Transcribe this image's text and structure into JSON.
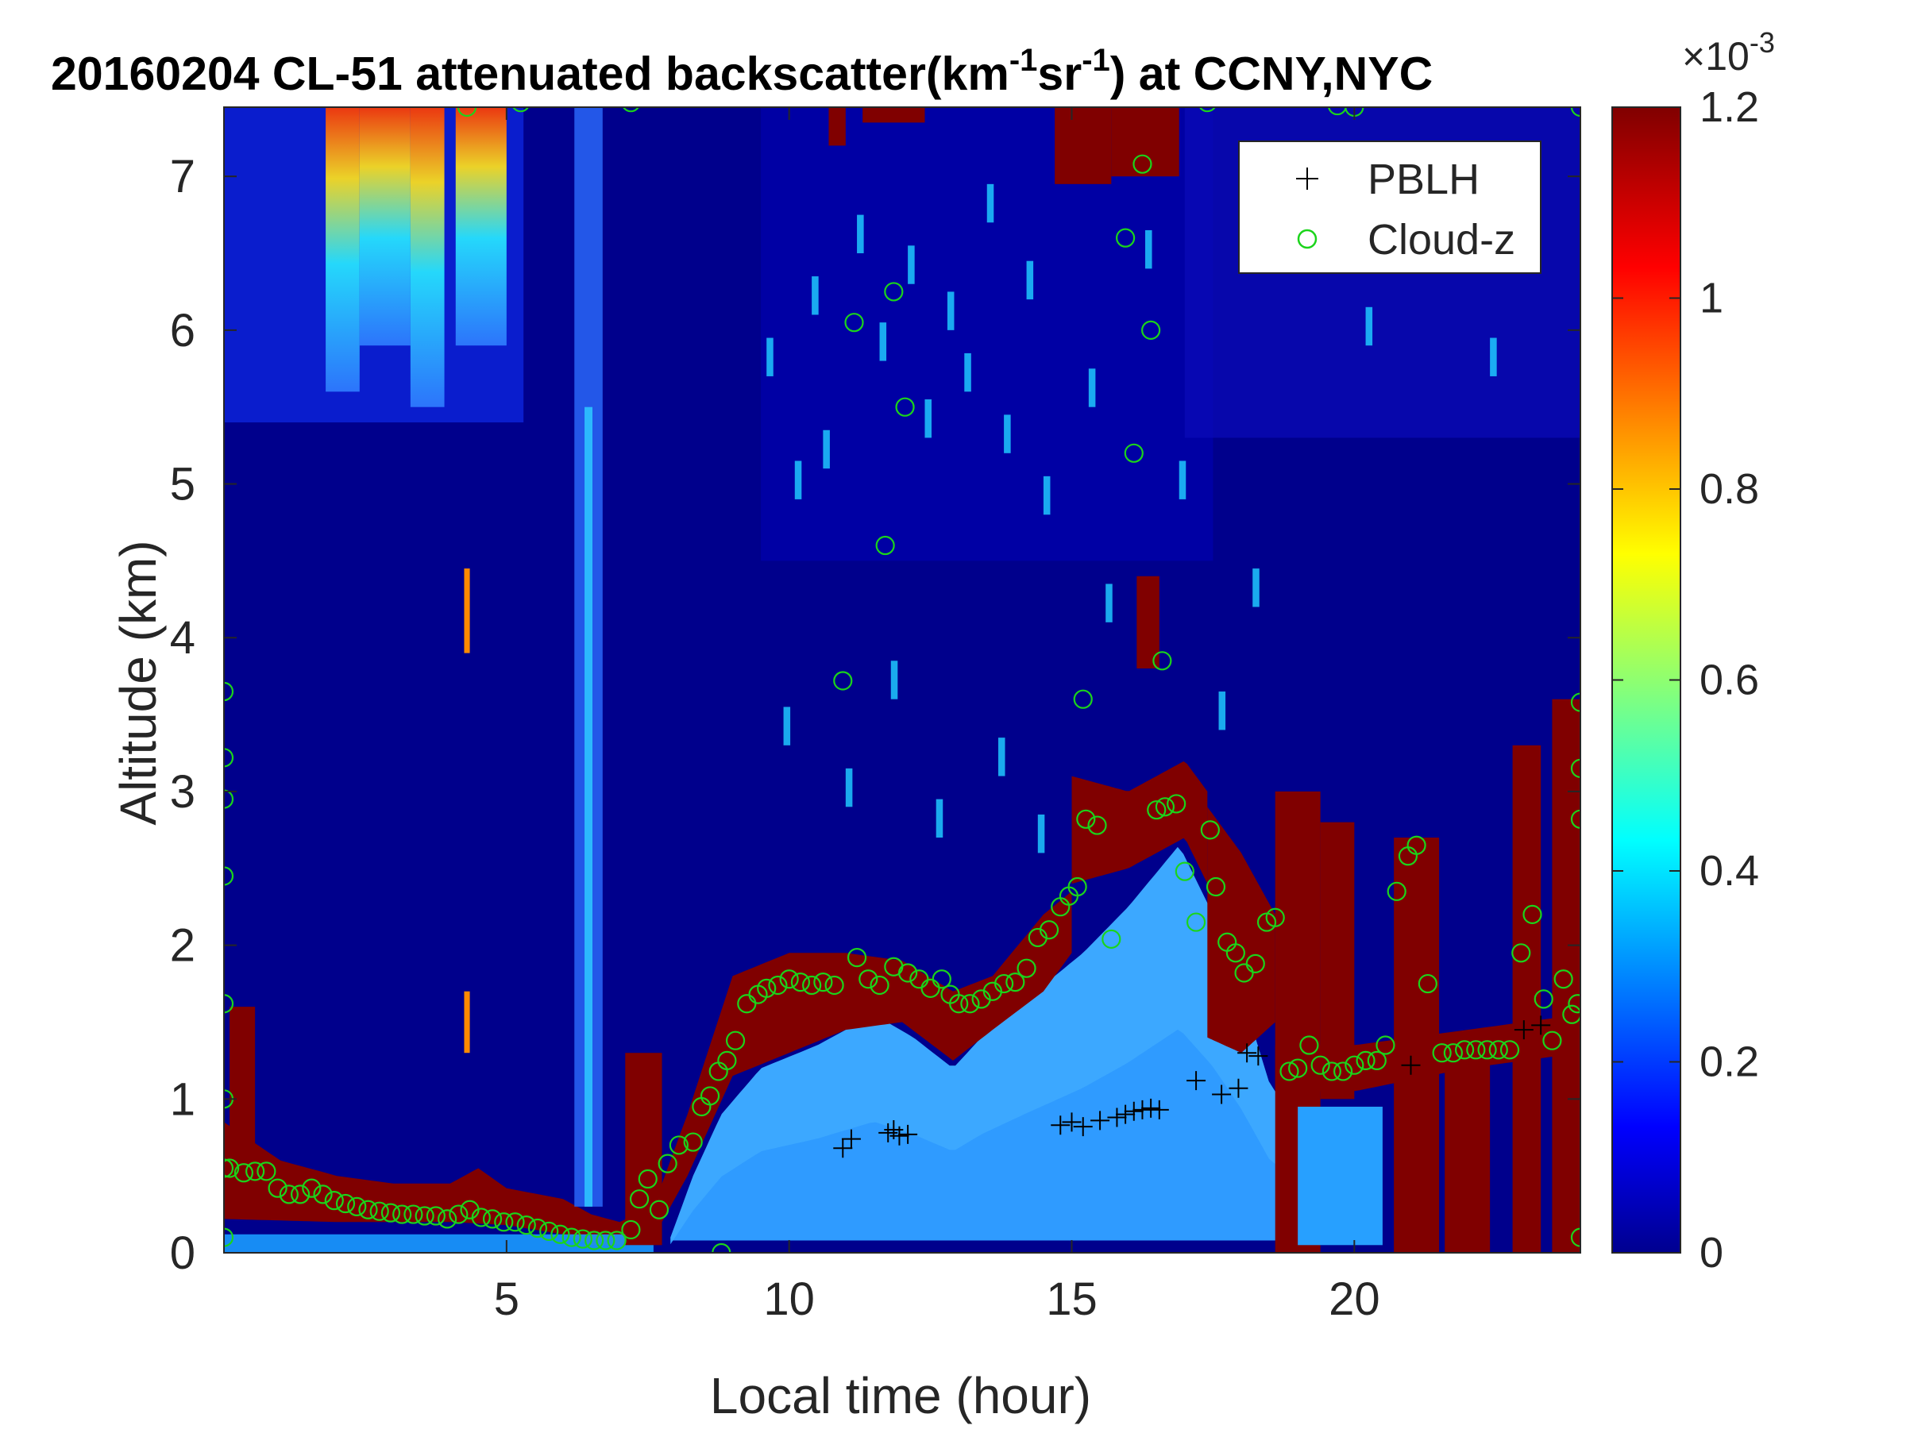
{
  "chart_data": {
    "type": "heatmap",
    "title": {
      "prefix": "20160204  CL-51 attenuated backscatter(km",
      "sup1": "-1",
      "mid": "sr",
      "sup2": "-1",
      "suffix": ") at CCNY,NYC"
    },
    "xlabel": "Local time (hour)",
    "ylabel": "Altitude (km)",
    "xlim": [
      0,
      24
    ],
    "ylim": [
      0,
      7.45
    ],
    "xticks": [
      5,
      10,
      15,
      20
    ],
    "yticks": [
      0,
      1,
      2,
      3,
      4,
      5,
      6,
      7
    ],
    "colorbar": {
      "colormap": "jet",
      "range": [
        0,
        1.2
      ],
      "ticks": [
        "0",
        "0.2",
        "0.4",
        "0.6",
        "0.8",
        "1",
        "1.2"
      ],
      "exponent": {
        "base": "×10",
        "power": "-3"
      }
    },
    "colors": {
      "background": "#00008c",
      "dark_blue": "#0000b4",
      "mid_blue": "#1a6bff",
      "light_blue": "#3ca8ff",
      "dark_red": "#800000",
      "pblh": "#000000",
      "cloud": "#1bd41b"
    },
    "legend": {
      "position": "top-right",
      "entries": [
        {
          "name": "PBLH",
          "marker": "+"
        },
        {
          "name": "Cloud-z",
          "marker": "o"
        }
      ]
    },
    "series": [
      {
        "name": "PBLH",
        "marker": "+",
        "points": [
          [
            10.95,
            0.68
          ],
          [
            11.1,
            0.74
          ],
          [
            11.75,
            0.78
          ],
          [
            11.85,
            0.8
          ],
          [
            11.95,
            0.76
          ],
          [
            12.1,
            0.77
          ],
          [
            14.8,
            0.83
          ],
          [
            15.0,
            0.85
          ],
          [
            15.2,
            0.82
          ],
          [
            15.5,
            0.86
          ],
          [
            15.8,
            0.88
          ],
          [
            15.95,
            0.9
          ],
          [
            16.1,
            0.92
          ],
          [
            16.25,
            0.93
          ],
          [
            16.4,
            0.94
          ],
          [
            16.55,
            0.93
          ],
          [
            17.2,
            1.12
          ],
          [
            17.65,
            1.03
          ],
          [
            17.95,
            1.07
          ],
          [
            18.1,
            1.3
          ],
          [
            18.3,
            1.28
          ],
          [
            21.0,
            1.22
          ],
          [
            23.0,
            1.45
          ],
          [
            23.3,
            1.48
          ]
        ]
      },
      {
        "name": "Cloud-z",
        "marker": "o",
        "points": [
          [
            0.1,
            0.55
          ],
          [
            0.35,
            0.52
          ],
          [
            0.55,
            0.53
          ],
          [
            0.75,
            0.53
          ],
          [
            0.95,
            0.42
          ],
          [
            1.15,
            0.38
          ],
          [
            1.35,
            0.38
          ],
          [
            1.55,
            0.42
          ],
          [
            1.75,
            0.38
          ],
          [
            1.95,
            0.34
          ],
          [
            2.15,
            0.32
          ],
          [
            2.35,
            0.3
          ],
          [
            2.55,
            0.28
          ],
          [
            2.75,
            0.27
          ],
          [
            2.95,
            0.26
          ],
          [
            3.15,
            0.25
          ],
          [
            3.35,
            0.25
          ],
          [
            3.55,
            0.24
          ],
          [
            3.75,
            0.24
          ],
          [
            3.95,
            0.22
          ],
          [
            4.15,
            0.25
          ],
          [
            4.35,
            0.28
          ],
          [
            4.55,
            0.23
          ],
          [
            4.75,
            0.22
          ],
          [
            4.95,
            0.2
          ],
          [
            5.15,
            0.2
          ],
          [
            5.35,
            0.18
          ],
          [
            5.55,
            0.16
          ],
          [
            5.75,
            0.14
          ],
          [
            5.95,
            0.12
          ],
          [
            6.15,
            0.1
          ],
          [
            6.35,
            0.09
          ],
          [
            6.55,
            0.08
          ],
          [
            6.75,
            0.08
          ],
          [
            6.95,
            0.08
          ],
          [
            7.2,
            0.15
          ],
          [
            7.35,
            0.35
          ],
          [
            7.5,
            0.48
          ],
          [
            7.7,
            0.28
          ],
          [
            7.85,
            0.58
          ],
          [
            8.05,
            0.7
          ],
          [
            8.3,
            0.72
          ],
          [
            8.45,
            0.95
          ],
          [
            8.6,
            1.02
          ],
          [
            8.75,
            1.18
          ],
          [
            8.9,
            1.25
          ],
          [
            9.05,
            1.38
          ],
          [
            9.25,
            1.62
          ],
          [
            9.45,
            1.68
          ],
          [
            9.6,
            1.72
          ],
          [
            9.8,
            1.74
          ],
          [
            10.0,
            1.78
          ],
          [
            10.2,
            1.76
          ],
          [
            10.4,
            1.74
          ],
          [
            10.6,
            1.76
          ],
          [
            10.8,
            1.74
          ],
          [
            11.2,
            1.92
          ],
          [
            11.4,
            1.78
          ],
          [
            11.6,
            1.74
          ],
          [
            11.85,
            1.86
          ],
          [
            12.1,
            1.82
          ],
          [
            12.3,
            1.78
          ],
          [
            12.5,
            1.72
          ],
          [
            12.7,
            1.78
          ],
          [
            12.85,
            1.68
          ],
          [
            13.0,
            1.62
          ],
          [
            13.2,
            1.62
          ],
          [
            13.4,
            1.65
          ],
          [
            13.6,
            1.7
          ],
          [
            13.8,
            1.75
          ],
          [
            14.0,
            1.76
          ],
          [
            14.2,
            1.85
          ],
          [
            14.4,
            2.05
          ],
          [
            14.6,
            2.1
          ],
          [
            14.8,
            2.25
          ],
          [
            14.95,
            2.32
          ],
          [
            15.1,
            2.38
          ],
          [
            15.25,
            2.82
          ],
          [
            15.45,
            2.78
          ],
          [
            15.7,
            2.04
          ],
          [
            16.5,
            2.88
          ],
          [
            16.65,
            2.9
          ],
          [
            16.85,
            2.92
          ],
          [
            17.0,
            2.48
          ],
          [
            17.2,
            2.15
          ],
          [
            17.45,
            2.75
          ],
          [
            17.55,
            2.38
          ],
          [
            17.75,
            2.02
          ],
          [
            17.9,
            1.95
          ],
          [
            18.05,
            1.82
          ],
          [
            18.25,
            1.88
          ],
          [
            18.45,
            2.15
          ],
          [
            18.6,
            2.18
          ],
          [
            18.85,
            1.18
          ],
          [
            19.0,
            1.2
          ],
          [
            19.2,
            1.35
          ],
          [
            19.4,
            1.22
          ],
          [
            19.6,
            1.18
          ],
          [
            19.8,
            1.18
          ],
          [
            20.0,
            1.22
          ],
          [
            20.2,
            1.25
          ],
          [
            20.4,
            1.25
          ],
          [
            20.55,
            1.35
          ],
          [
            20.75,
            2.35
          ],
          [
            20.95,
            2.58
          ],
          [
            21.1,
            2.65
          ],
          [
            21.3,
            1.75
          ],
          [
            21.55,
            1.3
          ],
          [
            21.75,
            1.3
          ],
          [
            21.95,
            1.32
          ],
          [
            22.15,
            1.32
          ],
          [
            22.35,
            1.32
          ],
          [
            22.55,
            1.32
          ],
          [
            22.75,
            1.32
          ],
          [
            22.95,
            1.95
          ],
          [
            23.15,
            2.2
          ],
          [
            23.35,
            1.65
          ],
          [
            23.5,
            1.38
          ],
          [
            23.7,
            1.78
          ],
          [
            23.85,
            1.55
          ],
          [
            23.95,
            1.62
          ],
          [
            24.0,
            0.1
          ],
          [
            24.0,
            2.82
          ],
          [
            24.0,
            3.15
          ],
          [
            24.0,
            3.58
          ],
          [
            24.0,
            7.45
          ],
          [
            0.0,
            0.1
          ],
          [
            0.0,
            0.55
          ],
          [
            0.0,
            1.0
          ],
          [
            0.0,
            1.62
          ],
          [
            0.0,
            2.45
          ],
          [
            0.0,
            2.95
          ],
          [
            0.0,
            3.22
          ],
          [
            0.0,
            3.65
          ],
          [
            4.3,
            7.45
          ],
          [
            5.25,
            7.48
          ],
          [
            7.2,
            7.48
          ],
          [
            8.8,
            0.0
          ],
          [
            11.15,
            6.05
          ],
          [
            11.85,
            6.25
          ],
          [
            12.05,
            5.5
          ],
          [
            11.7,
            4.6
          ],
          [
            10.95,
            3.72
          ],
          [
            15.2,
            3.6
          ],
          [
            16.1,
            5.2
          ],
          [
            16.4,
            6.0
          ],
          [
            15.95,
            6.6
          ],
          [
            16.25,
            7.08
          ],
          [
            16.6,
            3.85
          ],
          [
            17.4,
            7.48
          ],
          [
            19.7,
            7.46
          ],
          [
            20.0,
            7.45
          ]
        ]
      }
    ]
  }
}
